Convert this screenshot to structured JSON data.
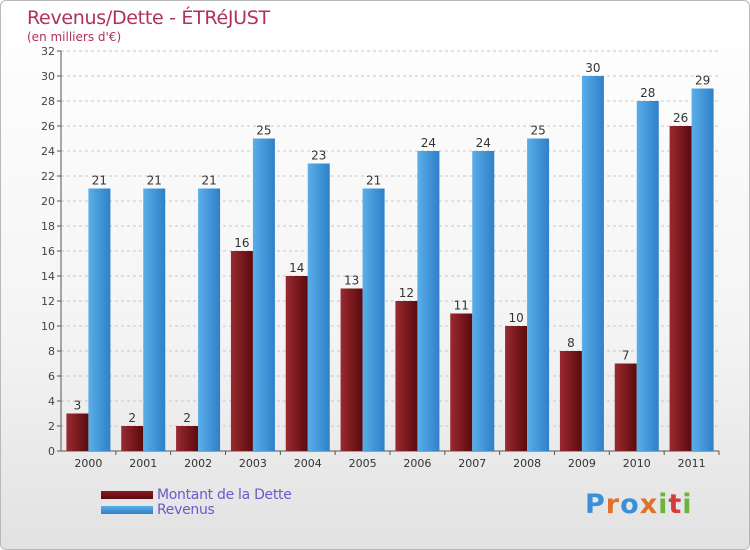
{
  "title": "Revenus/Dette - ÉTRéJUST",
  "subtitle": "(en milliers d'€)",
  "logo": {
    "text": "Proxiti",
    "colors": [
      "#3a8fd6",
      "#e0702a",
      "#3a8fd6",
      "#e0702a",
      "#6cb33e",
      "#d63a3a",
      "#6cb33e"
    ]
  },
  "chart_data": {
    "type": "bar",
    "categories": [
      "2000",
      "2001",
      "2002",
      "2003",
      "2004",
      "2005",
      "2006",
      "2007",
      "2008",
      "2009",
      "2010",
      "2011"
    ],
    "series": [
      {
        "name": "Montant de la Dette",
        "color": "#6b0d12",
        "values": [
          3,
          2,
          2,
          16,
          14,
          13,
          12,
          11,
          10,
          8,
          7,
          26
        ]
      },
      {
        "name": "Revenus",
        "color": "#3d93dc",
        "values": [
          21,
          21,
          21,
          25,
          23,
          21,
          24,
          24,
          25,
          30,
          28,
          29
        ]
      }
    ],
    "ylim": [
      0,
      32
    ],
    "ytick_step": 2,
    "grid": true,
    "legend": "bottom-left"
  }
}
